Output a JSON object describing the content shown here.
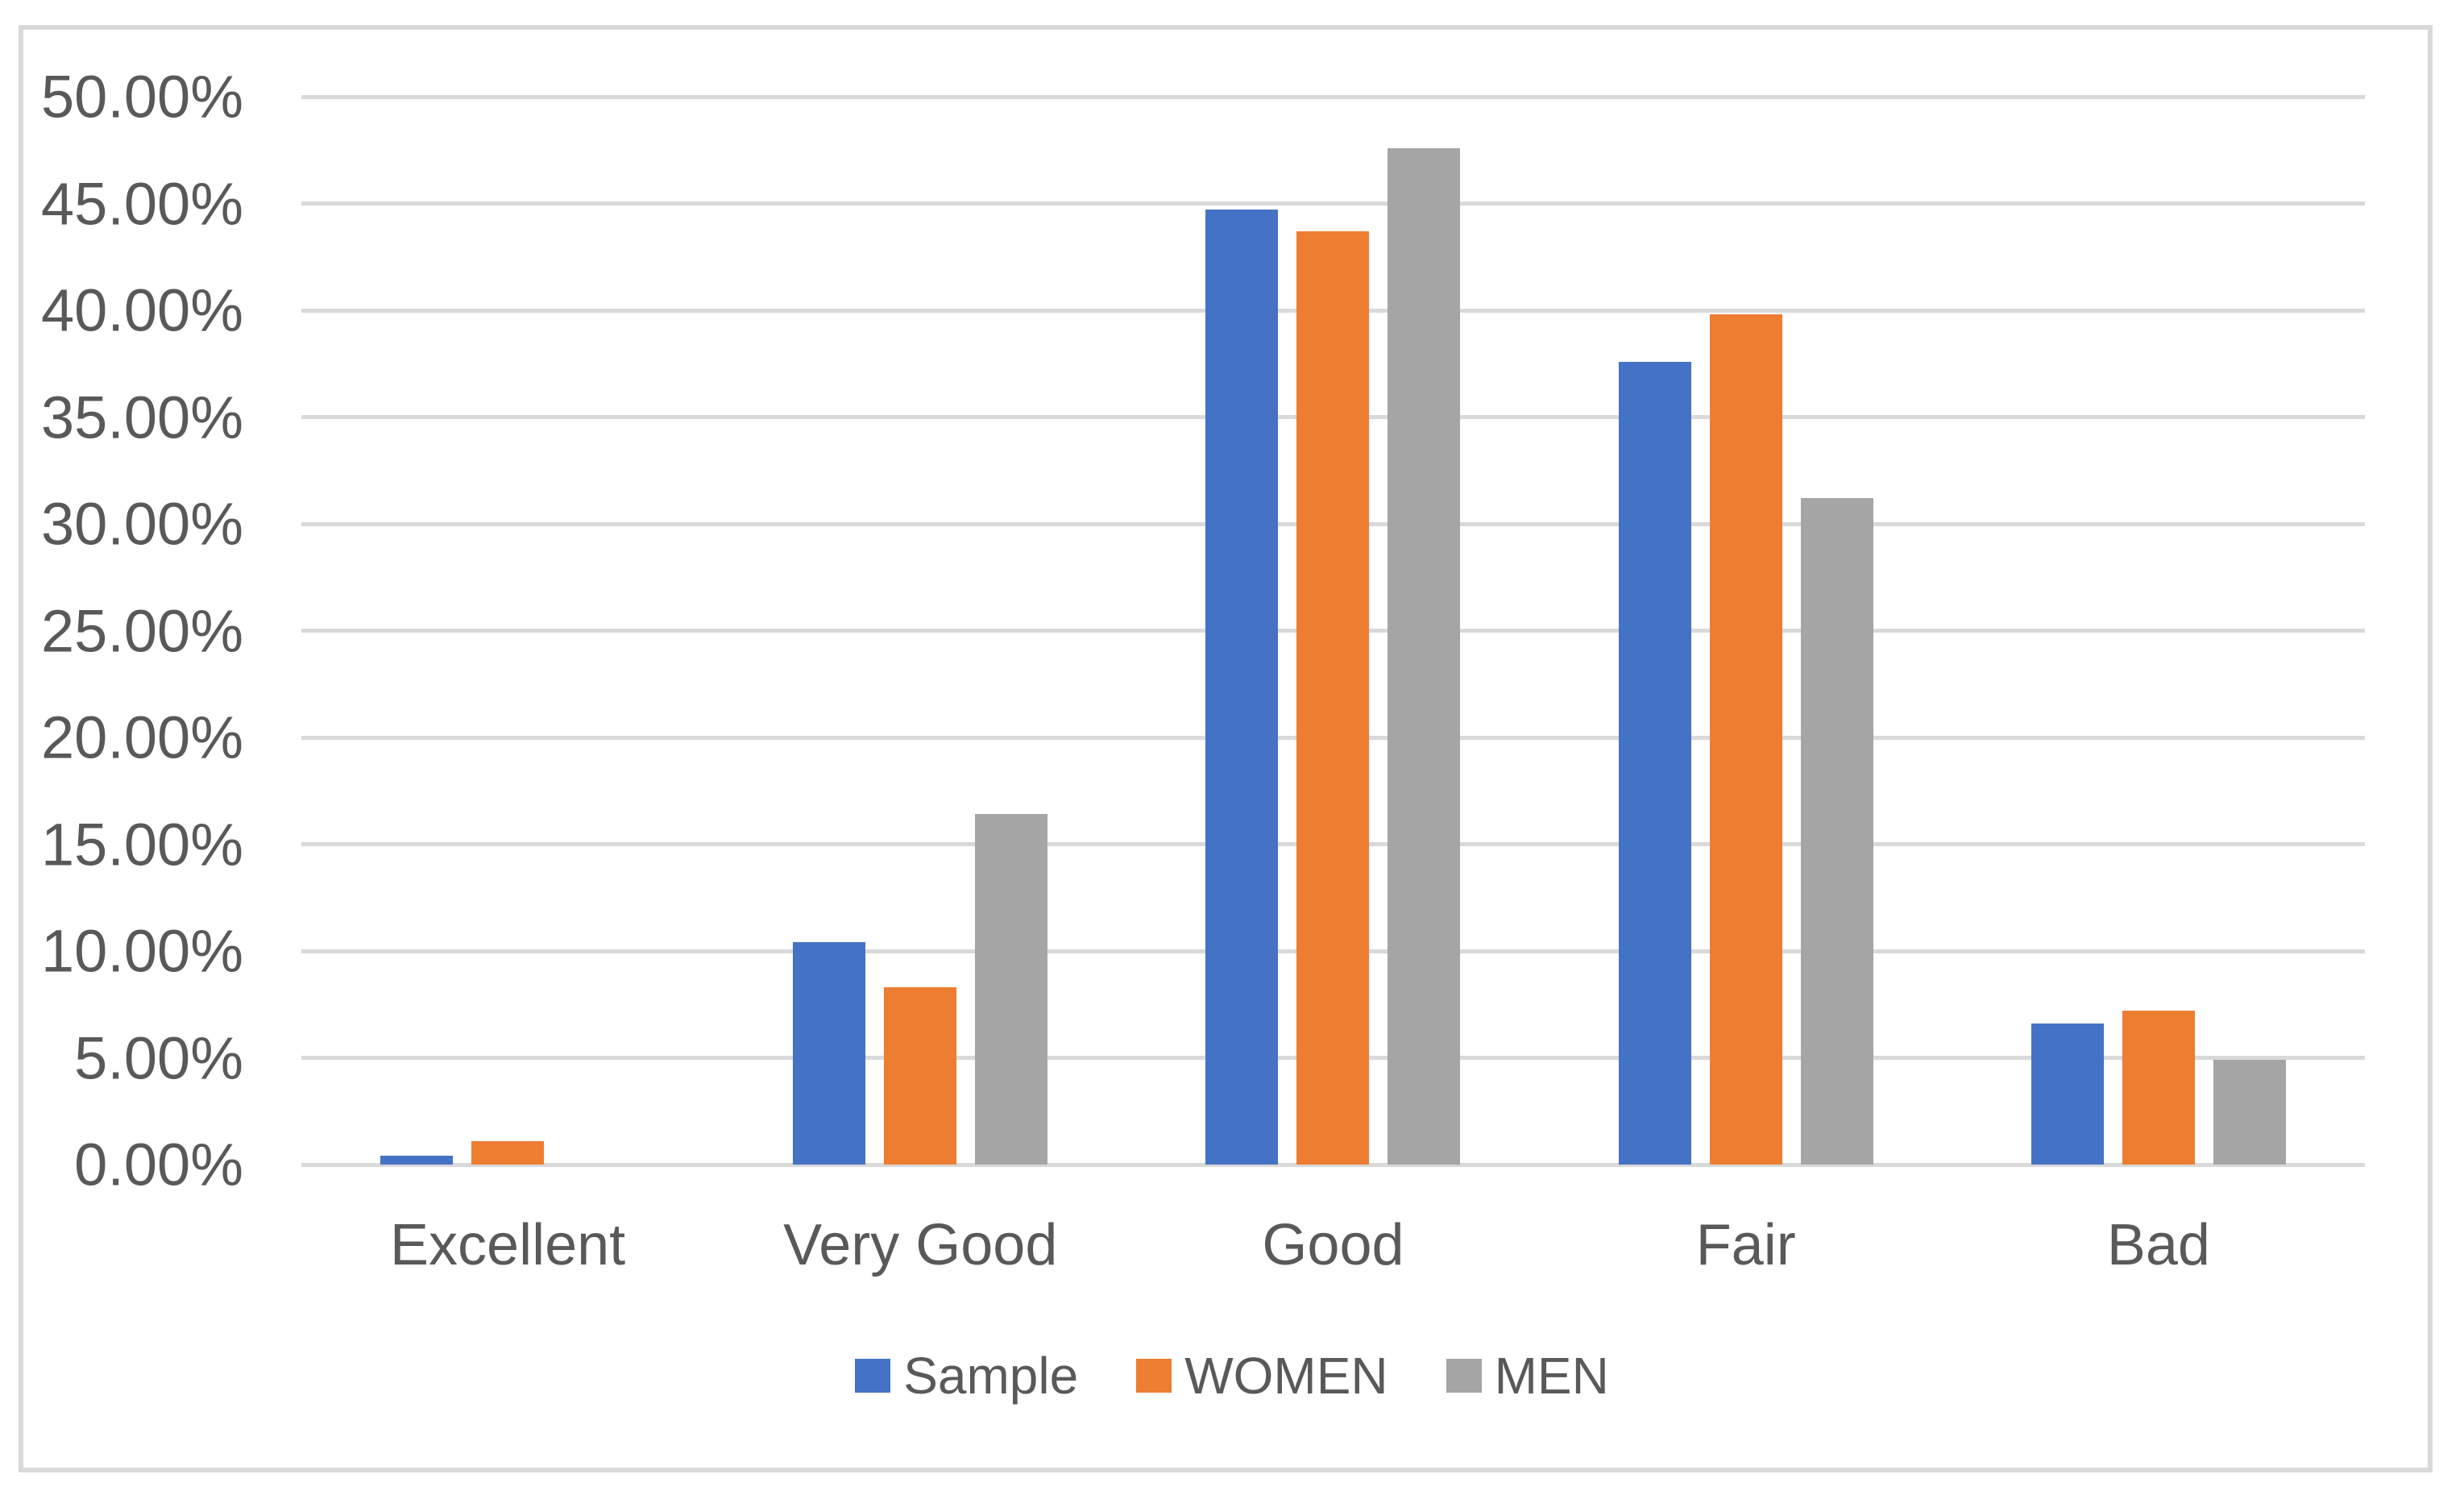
{
  "chart_data": {
    "type": "bar",
    "subtype": "clustered-column",
    "title": "",
    "xlabel": "",
    "ylabel": "",
    "categories": [
      "Excellent",
      "Very Good",
      "Good",
      "Fair",
      "Bad"
    ],
    "series": [
      {
        "name": "Sample",
        "color": "#4472C4",
        "values": [
          0.4,
          10.4,
          44.7,
          37.6,
          6.6
        ]
      },
      {
        "name": "WOMEN",
        "color": "#ED7D31",
        "values": [
          1.1,
          8.3,
          43.7,
          39.8,
          7.2
        ]
      },
      {
        "name": "MEN",
        "color": "#A5A5A5",
        "values": [
          0.0,
          16.4,
          47.6,
          31.2,
          4.9
        ]
      }
    ],
    "ylim": [
      0,
      50
    ],
    "ytick_step": 5,
    "ytick_labels": [
      "0.00%",
      "5.00%",
      "10.00%",
      "15.00%",
      "20.00%",
      "25.00%",
      "30.00%",
      "35.00%",
      "40.00%",
      "45.00%",
      "50.00%"
    ],
    "grid": true,
    "legend_position": "bottom-center",
    "colors": {
      "gridline": "#D9D9D9",
      "frame_border": "#D9D9D9",
      "axis_text": "#595959",
      "background": "#FFFFFF"
    }
  }
}
